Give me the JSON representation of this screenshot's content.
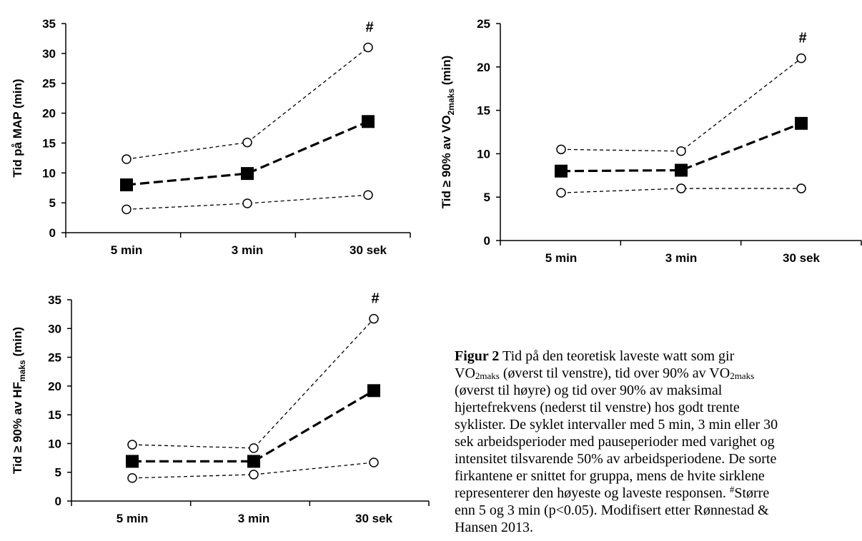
{
  "chart_data": [
    {
      "type": "line",
      "categories": [
        "5 min",
        "3 min",
        "30 sek"
      ],
      "ylabel": "Tid på MAP (min)",
      "ylim": [
        0,
        35
      ],
      "yticks": [
        0,
        5,
        10,
        15,
        20,
        25,
        30,
        35
      ],
      "series": [
        {
          "values": [
            12.3,
            15.1,
            31.0
          ],
          "marker": "open-circle",
          "line": "short-dash"
        },
        {
          "values": [
            8.0,
            9.9,
            18.6
          ],
          "marker": "filled-square",
          "line": "bold-dash"
        },
        {
          "values": [
            3.9,
            4.9,
            6.3
          ],
          "marker": "open-circle",
          "line": "short-dash"
        }
      ],
      "annotations": [
        {
          "category": "30 sek",
          "text": "#"
        }
      ]
    },
    {
      "type": "line",
      "categories": [
        "5 min",
        "3 min",
        "30 sek"
      ],
      "ylabel": "Tid ≥ 90% av VO2maks (min)",
      "ylabel_parts": [
        "Tid ≥ 90% av VO",
        "2maks",
        " (min)"
      ],
      "ylim": [
        0,
        25
      ],
      "yticks": [
        0,
        5,
        10,
        15,
        20,
        25
      ],
      "series": [
        {
          "values": [
            10.5,
            10.3,
            21.0
          ],
          "marker": "open-circle",
          "line": "short-dash"
        },
        {
          "values": [
            8.0,
            8.1,
            13.5
          ],
          "marker": "filled-square",
          "line": "bold-dash"
        },
        {
          "values": [
            5.5,
            6.0,
            6.0
          ],
          "marker": "open-circle",
          "line": "short-dash"
        }
      ],
      "annotations": [
        {
          "category": "30 sek",
          "text": "#"
        }
      ]
    },
    {
      "type": "line",
      "categories": [
        "5 min",
        "3 min",
        "30 sek"
      ],
      "ylabel": "Tid ≥ 90% av HFmaks (min)",
      "ylabel_parts": [
        "Tid ≥ 90% av HF",
        "maks",
        " (min)"
      ],
      "ylim": [
        0,
        35
      ],
      "yticks": [
        0,
        5,
        10,
        15,
        20,
        25,
        30,
        35
      ],
      "series": [
        {
          "values": [
            9.8,
            9.2,
            31.7
          ],
          "marker": "open-circle",
          "line": "short-dash"
        },
        {
          "values": [
            6.9,
            6.9,
            19.2
          ],
          "marker": "filled-square",
          "line": "bold-dash"
        },
        {
          "values": [
            4.0,
            4.6,
            6.7
          ],
          "marker": "open-circle",
          "line": "short-dash"
        }
      ],
      "annotations": [
        {
          "category": "30 sek",
          "text": "#"
        }
      ]
    }
  ],
  "caption": {
    "label": "Figur 2",
    "line1": " Tid på den teoretisk laveste watt som gir",
    "line2_pre": "VO",
    "line2_sub1": "2maks",
    "line2_mid": " (øverst til venstre), tid over 90% av VO",
    "line2_sub2": "2maks",
    "line3": "(øverst til høyre) og tid over 90% av maksimal",
    "line4": "hjertefrekvens (nederst til venstre) hos godt trente",
    "line5": "syklister. De syklet intervaller med 5 min, 3 min eller 30",
    "line6": "sek arbeidsperioder med pauseperioder med varighet og",
    "line7": "intensitet tilsvarende 50% av arbeidsperiodene. De sorte",
    "line8": "firkantene er snittet for gruppa, mens de hvite sirklene",
    "line9_pre": "representerer den høyeste og laveste responsen. ",
    "line9_sup": "#",
    "line9_post": "Større",
    "line10": "enn 5 og 3 min (p<0.05). Modifisert etter Rønnestad &",
    "line11": "Hansen 2013."
  }
}
